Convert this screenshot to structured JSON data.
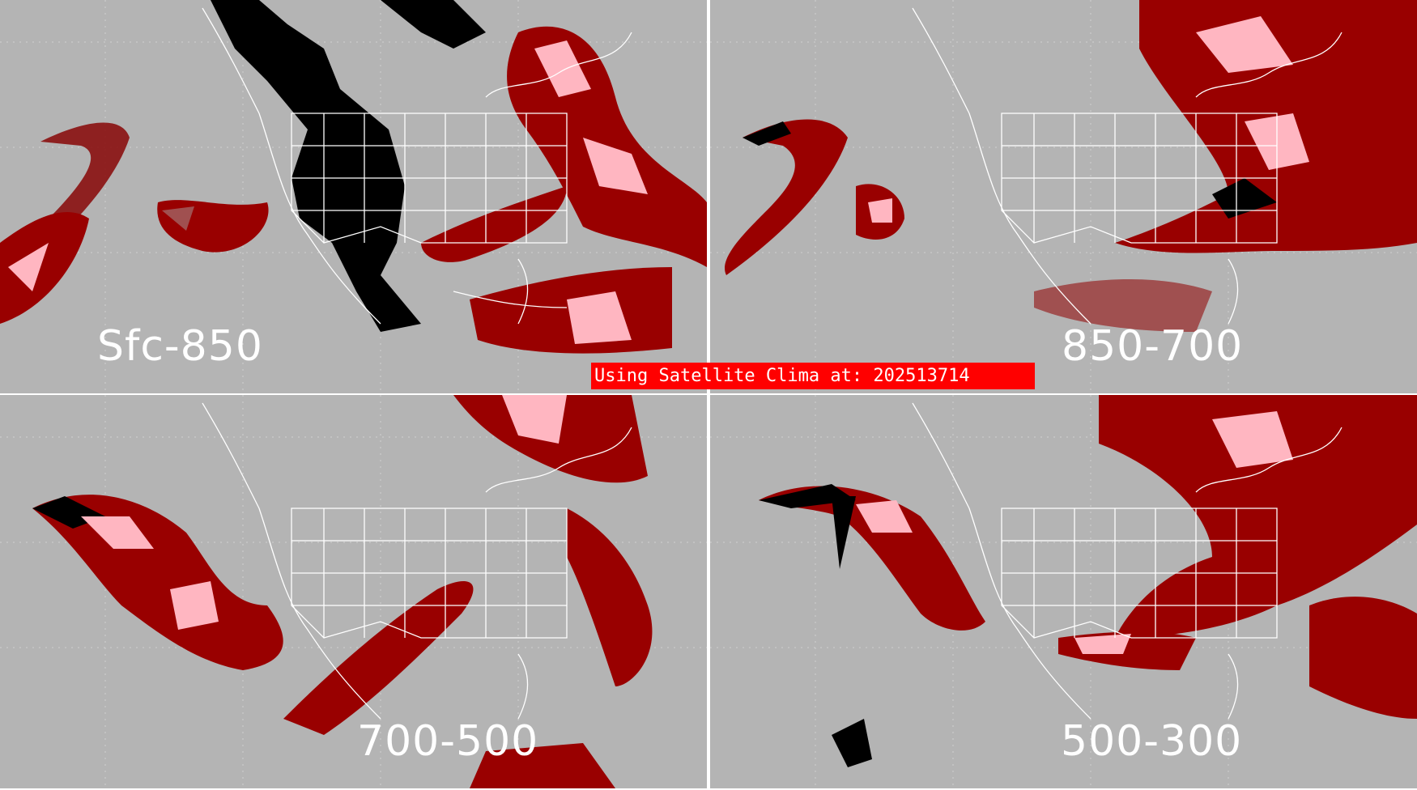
{
  "panels": {
    "top_left": {
      "label": "Sfc-850"
    },
    "top_right": {
      "label": "850-700"
    },
    "bottom_left": {
      "label": "700-500"
    },
    "bottom_right": {
      "label": "500-300"
    }
  },
  "banner": {
    "text": "Using Satellite Clima at: 202513714"
  },
  "colors": {
    "ocean_gray": "#b4b4b4",
    "light_layer": "#9a7878",
    "dark_red": "#990000",
    "bright_red": "#ff0000",
    "pink": "#ffb6c1",
    "black": "#000000",
    "outline": "#ffffff"
  }
}
